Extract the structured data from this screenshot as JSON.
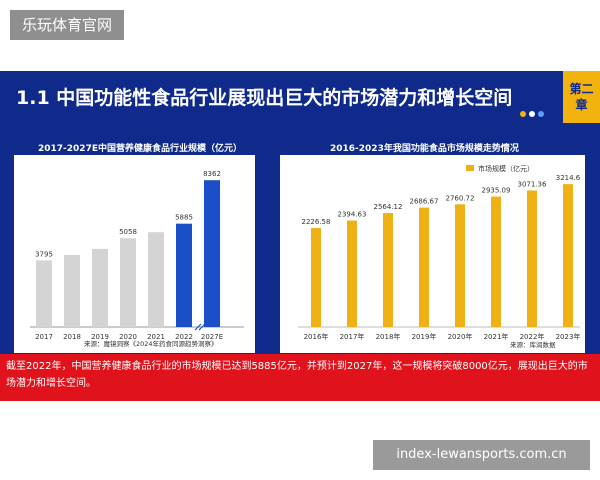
{
  "site_label": "乐玩体育官网",
  "watermark": "index-lewansports.com.cn",
  "slide": {
    "title": "1.1 中国功能性食品行业展现出巨大的市场潜力和增长空间",
    "chapter_badge": "第二章",
    "colors": {
      "background": "#0f2a8a",
      "badge": "#f2b30f",
      "caption_bar": "#e0121c"
    }
  },
  "left_chart_title": "2017-2027E中国营养健康食品行业规模（亿元）",
  "right_chart_title": "2016-2023年我国功能食品市场规模走势情况",
  "caption": "截至2022年，中国营养健康食品行业的市场规模已达到5885亿元，并预计到2027年，这一规模将突破8000亿元，展现出巨大的市场潜力和增长空间。",
  "chart_data": [
    {
      "type": "bar",
      "categories": [
        "2017",
        "2018",
        "2019",
        "2020",
        "2021",
        "2022",
        "2027E"
      ],
      "values": [
        3795,
        4100,
        4450,
        5058,
        5400,
        5885,
        8362
      ],
      "labels": [
        "3795",
        "",
        "",
        "5058",
        "",
        "5885",
        "8362"
      ],
      "title": "2017-2027E中国营养健康食品行业规模（亿元）",
      "ylim": [
        0,
        9000
      ],
      "source": "来源：魔镜洞察《2024年药食同源趋势洞察》",
      "colors": {
        "historic": "#d4d4d4",
        "2022": "#1b4fc7",
        "2027E": "#1b4fc7"
      }
    },
    {
      "type": "bar",
      "categories": [
        "2016年",
        "2017年",
        "2018年",
        "2019年",
        "2020年",
        "2021年",
        "2022年",
        "2023年"
      ],
      "values": [
        2226.58,
        2394.63,
        2564.12,
        2686.67,
        2760.72,
        2935.09,
        3071.36,
        3214.6
      ],
      "labels": [
        "2226.58",
        "2394.63",
        "2564.12",
        "2686.67",
        "2760.72",
        "2935.09",
        "3071.36",
        "3214.6"
      ],
      "title": "2016-2023年我国功能食品市场规模走势情况",
      "legend": "市场规模（亿元）",
      "legend_position": "top-right",
      "ylim": [
        0,
        3600
      ],
      "source": "来源：库润数据",
      "color": "#f0b114"
    }
  ]
}
